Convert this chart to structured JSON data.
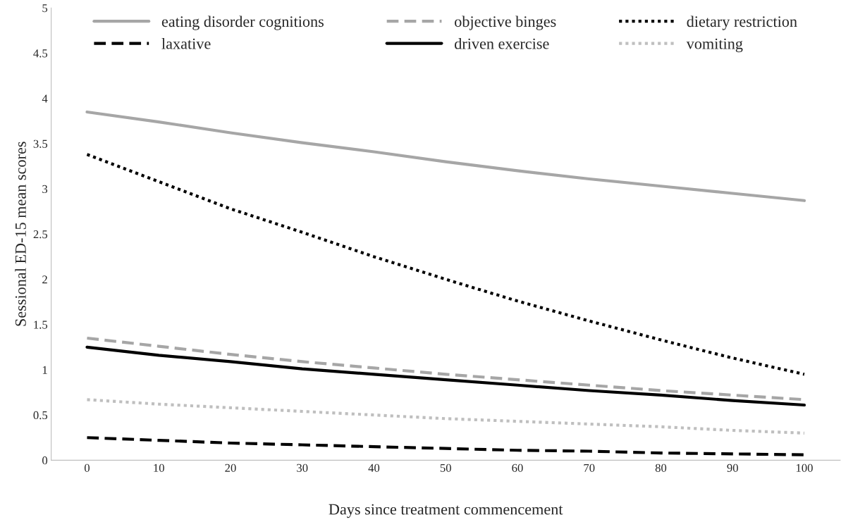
{
  "chart_data": {
    "type": "line",
    "xlabel": "Days since treatment commencement",
    "ylabel": "Sessional ED-15 mean scores",
    "categories": [
      "0",
      "10",
      "20",
      "30",
      "40",
      "50",
      "60",
      "70",
      "80",
      "90",
      "100"
    ],
    "ylim": [
      0,
      5
    ],
    "yticks": [
      0,
      0.5,
      1,
      1.5,
      2,
      2.5,
      3,
      3.5,
      4,
      4.5,
      5
    ],
    "grid": false,
    "legend": "top",
    "marker": "none",
    "series": [
      {
        "name": "eating disorder cognitions",
        "color": "#a6a6a6",
        "line_style": "solid",
        "values": [
          3.85,
          3.74,
          3.62,
          3.51,
          3.41,
          3.3,
          3.2,
          3.11,
          3.03,
          2.95,
          2.87
        ]
      },
      {
        "name": "objective binges",
        "color": "#a6a6a6",
        "line_style": "dashed",
        "values": [
          1.35,
          1.26,
          1.17,
          1.09,
          1.02,
          0.95,
          0.89,
          0.83,
          0.77,
          0.72,
          0.67
        ]
      },
      {
        "name": "dietary restriction",
        "color": "#000000",
        "line_style": "dotted",
        "values": [
          3.38,
          3.08,
          2.78,
          2.52,
          2.25,
          2.0,
          1.76,
          1.54,
          1.33,
          1.13,
          0.95
        ]
      },
      {
        "name": "laxative",
        "color": "#000000",
        "line_style": "dashed",
        "values": [
          0.25,
          0.22,
          0.19,
          0.17,
          0.15,
          0.13,
          0.11,
          0.1,
          0.08,
          0.07,
          0.06
        ]
      },
      {
        "name": "driven exercise",
        "color": "#000000",
        "line_style": "solid",
        "values": [
          1.25,
          1.16,
          1.09,
          1.01,
          0.95,
          0.89,
          0.83,
          0.77,
          0.72,
          0.66,
          0.61
        ]
      },
      {
        "name": "vomiting",
        "color": "#bfbfbf",
        "line_style": "dotted",
        "values": [
          0.67,
          0.62,
          0.58,
          0.54,
          0.5,
          0.46,
          0.43,
          0.4,
          0.37,
          0.33,
          0.3
        ]
      }
    ]
  }
}
